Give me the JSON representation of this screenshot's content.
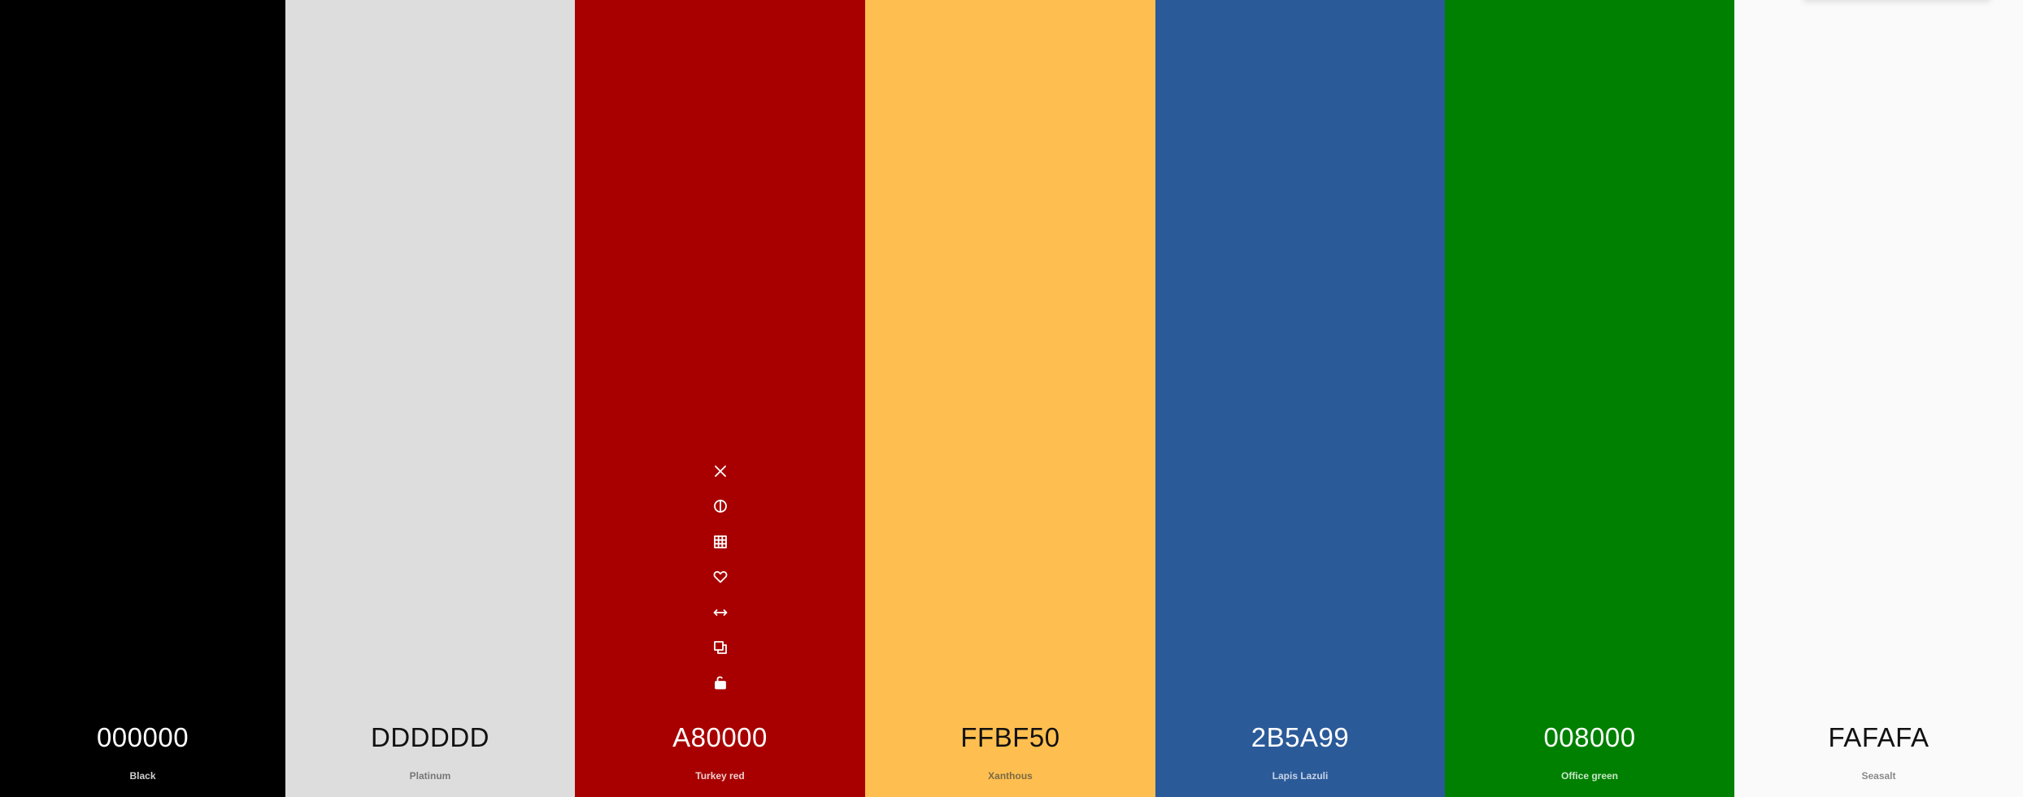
{
  "swatches": [
    {
      "hex": "000000",
      "name": "Black",
      "bg": "#000000",
      "hex_color": "#ffffff",
      "name_color": "#cfcfcf"
    },
    {
      "hex": "DDDDDD",
      "name": "Platinum",
      "bg": "#DDDDDD",
      "hex_color": "#111111",
      "name_color": "#777777"
    },
    {
      "hex": "A80000",
      "name": "Turkey red",
      "bg": "#A80000",
      "hex_color": "#ffffff",
      "name_color": "#f0d0d0"
    },
    {
      "hex": "FFBF50",
      "name": "Xanthous",
      "bg": "#FFBF50",
      "hex_color": "#111111",
      "name_color": "#7a6a45"
    },
    {
      "hex": "2B5A99",
      "name": "Lapis Lazuli",
      "bg": "#2B5A99",
      "hex_color": "#ffffff",
      "name_color": "#c8d4e6"
    },
    {
      "hex": "008000",
      "name": "Office green",
      "bg": "#008000",
      "hex_color": "#ffffff",
      "name_color": "#c9e6c9"
    },
    {
      "hex": "FAFAFA",
      "name": "Seasalt",
      "bg": "#FAFAFA",
      "hex_color": "#111111",
      "name_color": "#8a8a8a"
    }
  ],
  "hovered_swatch_index": 2,
  "tools": [
    {
      "icon": "close-icon",
      "action": "remove"
    },
    {
      "icon": "contrast-icon",
      "action": "shades"
    },
    {
      "icon": "grid-icon",
      "action": "view-shades"
    },
    {
      "icon": "heart-icon",
      "action": "favorite"
    },
    {
      "icon": "drag-arrows-icon",
      "action": "drag"
    },
    {
      "icon": "copy-icon",
      "action": "copy-hex"
    },
    {
      "icon": "unlock-icon",
      "action": "lock"
    }
  ]
}
